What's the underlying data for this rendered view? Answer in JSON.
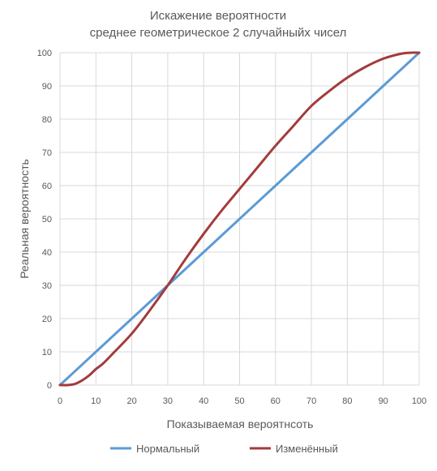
{
  "chart_data": {
    "type": "line",
    "title": "Искажение вероятности",
    "subtitle": "среднее геометрическое  2 случайныйх чисел",
    "xlabel": "Показываемая вероятнсоть",
    "ylabel": "Реальная вероятность",
    "xlim": [
      0,
      100
    ],
    "ylim": [
      0,
      100
    ],
    "x_ticks": [
      "0",
      "10",
      "20",
      "30",
      "40",
      "50",
      "60",
      "70",
      "80",
      "90",
      "100"
    ],
    "y_ticks": [
      "0",
      "10",
      "20",
      "30",
      "40",
      "50",
      "60",
      "70",
      "80",
      "90",
      "100"
    ],
    "grid": true,
    "legend_position": "bottom",
    "series": [
      {
        "name": "Нормальный",
        "color": "#5B9BD5",
        "x": [
          0,
          10,
          20,
          30,
          40,
          50,
          60,
          70,
          80,
          90,
          100
        ],
        "y": [
          0,
          10,
          20,
          30,
          40,
          50,
          60,
          70,
          80,
          90,
          100
        ]
      },
      {
        "name": "Изменённый",
        "color": "#A33B3B",
        "x": [
          0,
          2,
          4,
          6,
          8,
          10,
          12,
          15,
          20,
          25,
          30,
          35,
          40,
          45,
          50,
          55,
          60,
          65,
          70,
          75,
          80,
          85,
          90,
          95,
          98,
          100
        ],
        "y": [
          0,
          0,
          0.3,
          1.3,
          2.8,
          4.8,
          6.5,
          9.8,
          15.5,
          22.5,
          30,
          38,
          45.5,
          52.5,
          59,
          65.5,
          72,
          78,
          84,
          88.5,
          92.5,
          95.7,
          98.2,
          99.7,
          100,
          100
        ]
      }
    ]
  }
}
